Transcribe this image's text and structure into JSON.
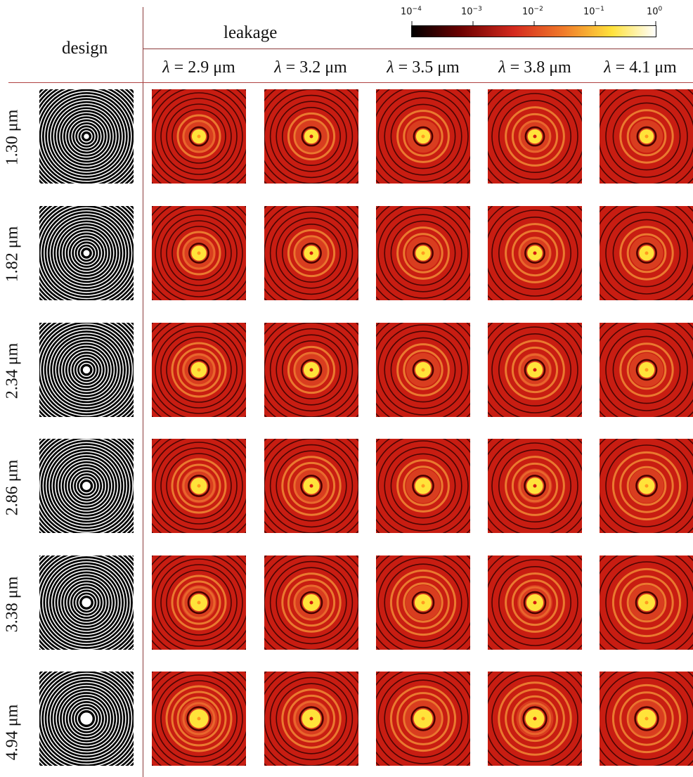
{
  "headers": {
    "design": "design",
    "leakage": "leakage"
  },
  "wavelengths": [
    {
      "symbol": "λ",
      "eq": " = 2.9 μm",
      "value": 2.9
    },
    {
      "symbol": "λ",
      "eq": " = 3.2 μm",
      "value": 3.2
    },
    {
      "symbol": "λ",
      "eq": " = 3.5 μm",
      "value": 3.5
    },
    {
      "symbol": "λ",
      "eq": " = 3.8 μm",
      "value": 3.8
    },
    {
      "symbol": "λ",
      "eq": " = 4.1 μm",
      "value": 4.1
    }
  ],
  "rows": [
    {
      "label": "1.30 μm",
      "core": 1.3
    },
    {
      "label": "1.82 μm",
      "core": 1.82
    },
    {
      "label": "2.34 μm",
      "core": 2.34
    },
    {
      "label": "2.86 μm",
      "core": 2.86
    },
    {
      "label": "3.38 μm",
      "core": 3.38
    },
    {
      "label": "4.94 μm",
      "core": 4.94
    }
  ],
  "colorbar": {
    "colormap": "hot",
    "ticks": [
      {
        "base": "10",
        "exp": "−4"
      },
      {
        "base": "10",
        "exp": "−3"
      },
      {
        "base": "10",
        "exp": "−2"
      },
      {
        "base": "10",
        "exp": "−1"
      },
      {
        "base": "10",
        "exp": "0"
      }
    ],
    "colors": [
      "#000000",
      "#6b0000",
      "#d42a1e",
      "#f07a2a",
      "#ffe23c",
      "#ffffff"
    ]
  }
}
